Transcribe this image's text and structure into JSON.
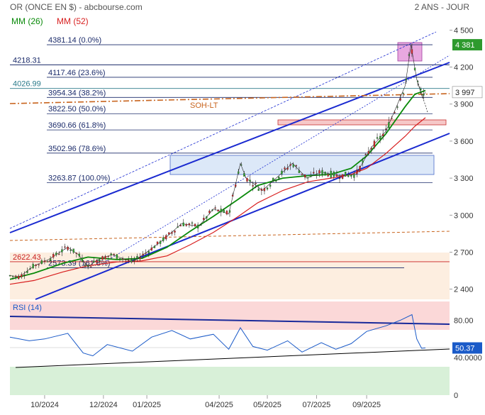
{
  "header": {
    "title": "OR (ONCE EN $) - abcbourse.com",
    "period": "2 ANS - JOUR",
    "ma_short_label": "MM (26)",
    "ma_long_label": "MM (52)",
    "ma_short_color": "#0a8a0a",
    "ma_long_color": "#d81e1e"
  },
  "chart_data": [
    {
      "type": "candlestick",
      "yscale": "linear",
      "ylim": [
        2300,
        4600
      ],
      "xlim": [
        "2024-08-26",
        "2025-11-25"
      ],
      "x_ticks": [
        {
          "label": "10/2024",
          "date": "2024-10-01"
        },
        {
          "label": "12/2024",
          "date": "2024-12-01"
        },
        {
          "label": "01/2025",
          "date": "2025-01-15"
        },
        {
          "label": "04/2025",
          "date": "2025-03-31"
        },
        {
          "label": "05/2025",
          "date": "2025-05-20"
        },
        {
          "label": "07/2025",
          "date": "2025-07-10"
        },
        {
          "label": "09/2025",
          "date": "2025-08-31"
        }
      ],
      "y_ticks": [
        {
          "label": "4 500",
          "value": 4500
        },
        {
          "label": "4 200",
          "value": 4200
        },
        {
          "label": "3 900",
          "value": 3900
        },
        {
          "label": "3 600",
          "value": 3600
        },
        {
          "label": "3 300",
          "value": 3300
        },
        {
          "label": "3 000",
          "value": 3000
        },
        {
          "label": "2 700",
          "value": 2700
        },
        {
          "label": "2 400",
          "value": 2400
        }
      ],
      "last_price": {
        "label": "4 381",
        "value": 4381,
        "color": "#2e9a2e"
      },
      "current_price": {
        "label": "3 997",
        "value": 3997
      },
      "fibonacci": [
        {
          "price": 4381.14,
          "label": "4381.14  (0.0%)"
        },
        {
          "price": 4117.46,
          "label": "4117.46  (23.6%)"
        },
        {
          "price": 3954.34,
          "label": "3954.34  (38.2%)"
        },
        {
          "price": 3822.5,
          "label": "3822.50  (50.0%)"
        },
        {
          "price": 3690.66,
          "label": "3690.66  (61.8%)"
        },
        {
          "price": 3502.96,
          "label": "3502.96  (78.6%)"
        },
        {
          "price": 3263.87,
          "label": "3263.87  (100.0%)"
        },
        {
          "price": 2573.39,
          "label": "2573.39  (161.8%)"
        }
      ],
      "levels": [
        {
          "price": 4218.31,
          "label": "4218.31",
          "color": "#1a2a6a"
        },
        {
          "price": 4026.99,
          "label": "4026.99",
          "color": "#2a7a8a"
        },
        {
          "price": 2622.43,
          "label": "2622.43",
          "color": "#c81e1e"
        }
      ],
      "annotations": [
        {
          "text": "SOH-LT",
          "color": "#c8641e"
        }
      ],
      "series": [
        {
          "name": "MM (26)",
          "color": "#0a8a0a",
          "points": [
            [
              "2024-08-26",
              2480
            ],
            [
              "2024-09-20",
              2530
            ],
            [
              "2024-10-20",
              2610
            ],
            [
              "2024-11-15",
              2660
            ],
            [
              "2024-12-15",
              2640
            ],
            [
              "2025-01-10",
              2650
            ],
            [
              "2025-02-05",
              2740
            ],
            [
              "2025-03-01",
              2870
            ],
            [
              "2025-03-25",
              2990
            ],
            [
              "2025-04-20",
              3130
            ],
            [
              "2025-05-10",
              3240
            ],
            [
              "2025-06-05",
              3300
            ],
            [
              "2025-07-01",
              3320
            ],
            [
              "2025-07-25",
              3330
            ],
            [
              "2025-08-15",
              3380
            ],
            [
              "2025-08-31",
              3480
            ],
            [
              "2025-09-20",
              3660
            ],
            [
              "2025-10-10",
              3880
            ],
            [
              "2025-10-20",
              3980
            ],
            [
              "2025-10-31",
              4010
            ]
          ]
        },
        {
          "name": "MM (52)",
          "color": "#d81e1e",
          "points": [
            [
              "2024-08-26",
              2440
            ],
            [
              "2024-09-20",
              2470
            ],
            [
              "2024-10-20",
              2540
            ],
            [
              "2024-11-15",
              2590
            ],
            [
              "2024-12-15",
              2620
            ],
            [
              "2025-01-10",
              2630
            ],
            [
              "2025-02-05",
              2670
            ],
            [
              "2025-03-01",
              2760
            ],
            [
              "2025-03-25",
              2860
            ],
            [
              "2025-04-20",
              2990
            ],
            [
              "2025-05-10",
              3100
            ],
            [
              "2025-06-05",
              3200
            ],
            [
              "2025-07-01",
              3270
            ],
            [
              "2025-07-25",
              3300
            ],
            [
              "2025-08-15",
              3330
            ],
            [
              "2025-08-31",
              3380
            ],
            [
              "2025-09-20",
              3500
            ],
            [
              "2025-10-10",
              3640
            ],
            [
              "2025-10-20",
              3720
            ],
            [
              "2025-10-31",
              3790
            ]
          ]
        },
        {
          "name": "price",
          "color": "#1e7a1e",
          "points": [
            [
              "2024-08-26",
              2510
            ],
            [
              "2024-09-05",
              2500
            ],
            [
              "2024-09-20",
              2590
            ],
            [
              "2024-10-05",
              2640
            ],
            [
              "2024-10-25",
              2740
            ],
            [
              "2024-11-05",
              2680
            ],
            [
              "2024-11-15",
              2580
            ],
            [
              "2024-11-25",
              2640
            ],
            [
              "2024-12-10",
              2680
            ],
            [
              "2024-12-31",
              2620
            ],
            [
              "2025-01-15",
              2700
            ],
            [
              "2025-02-01",
              2800
            ],
            [
              "2025-02-20",
              2930
            ],
            [
              "2025-03-10",
              2910
            ],
            [
              "2025-03-25",
              3050
            ],
            [
              "2025-04-10",
              3010
            ],
            [
              "2025-04-22",
              3420
            ],
            [
              "2025-04-28",
              3300
            ],
            [
              "2025-05-15",
              3200
            ],
            [
              "2025-06-01",
              3320
            ],
            [
              "2025-06-15",
              3420
            ],
            [
              "2025-06-30",
              3300
            ],
            [
              "2025-07-15",
              3350
            ],
            [
              "2025-08-01",
              3320
            ],
            [
              "2025-08-20",
              3330
            ],
            [
              "2025-09-05",
              3550
            ],
            [
              "2025-09-20",
              3680
            ],
            [
              "2025-10-01",
              3880
            ],
            [
              "2025-10-10",
              4050
            ],
            [
              "2025-10-16",
              4381
            ],
            [
              "2025-10-22",
              4100
            ],
            [
              "2025-10-28",
              3950
            ],
            [
              "2025-10-31",
              3997
            ]
          ]
        }
      ]
    },
    {
      "type": "line",
      "title": "RSI (14)",
      "ylim": [
        0,
        100
      ],
      "y_ticks": [
        {
          "label": "80.00",
          "value": 80
        },
        {
          "label": "40.0000",
          "value": 40
        },
        {
          "label": "0",
          "value": 0
        }
      ],
      "last_value": {
        "label": "50.37",
        "value": 50.37
      },
      "series": [
        {
          "name": "RSI (14)",
          "color": "#1a5ac8",
          "points": [
            [
              "2024-08-26",
              62
            ],
            [
              "2024-09-15",
              58
            ],
            [
              "2024-10-01",
              60
            ],
            [
              "2024-10-25",
              66
            ],
            [
              "2024-11-10",
              45
            ],
            [
              "2024-11-20",
              42
            ],
            [
              "2024-12-05",
              54
            ],
            [
              "2024-12-31",
              47
            ],
            [
              "2025-01-20",
              62
            ],
            [
              "2025-02-10",
              69
            ],
            [
              "2025-03-01",
              60
            ],
            [
              "2025-03-25",
              65
            ],
            [
              "2025-04-10",
              49
            ],
            [
              "2025-04-22",
              72
            ],
            [
              "2025-05-05",
              52
            ],
            [
              "2025-05-20",
              48
            ],
            [
              "2025-06-10",
              58
            ],
            [
              "2025-06-25",
              46
            ],
            [
              "2025-07-15",
              56
            ],
            [
              "2025-07-30",
              49
            ],
            [
              "2025-08-15",
              55
            ],
            [
              "2025-08-31",
              68
            ],
            [
              "2025-09-20",
              74
            ],
            [
              "2025-10-05",
              80
            ],
            [
              "2025-10-17",
              86
            ],
            [
              "2025-10-22",
              60
            ],
            [
              "2025-10-27",
              50
            ],
            [
              "2025-10-31",
              50.37
            ]
          ]
        }
      ]
    }
  ]
}
